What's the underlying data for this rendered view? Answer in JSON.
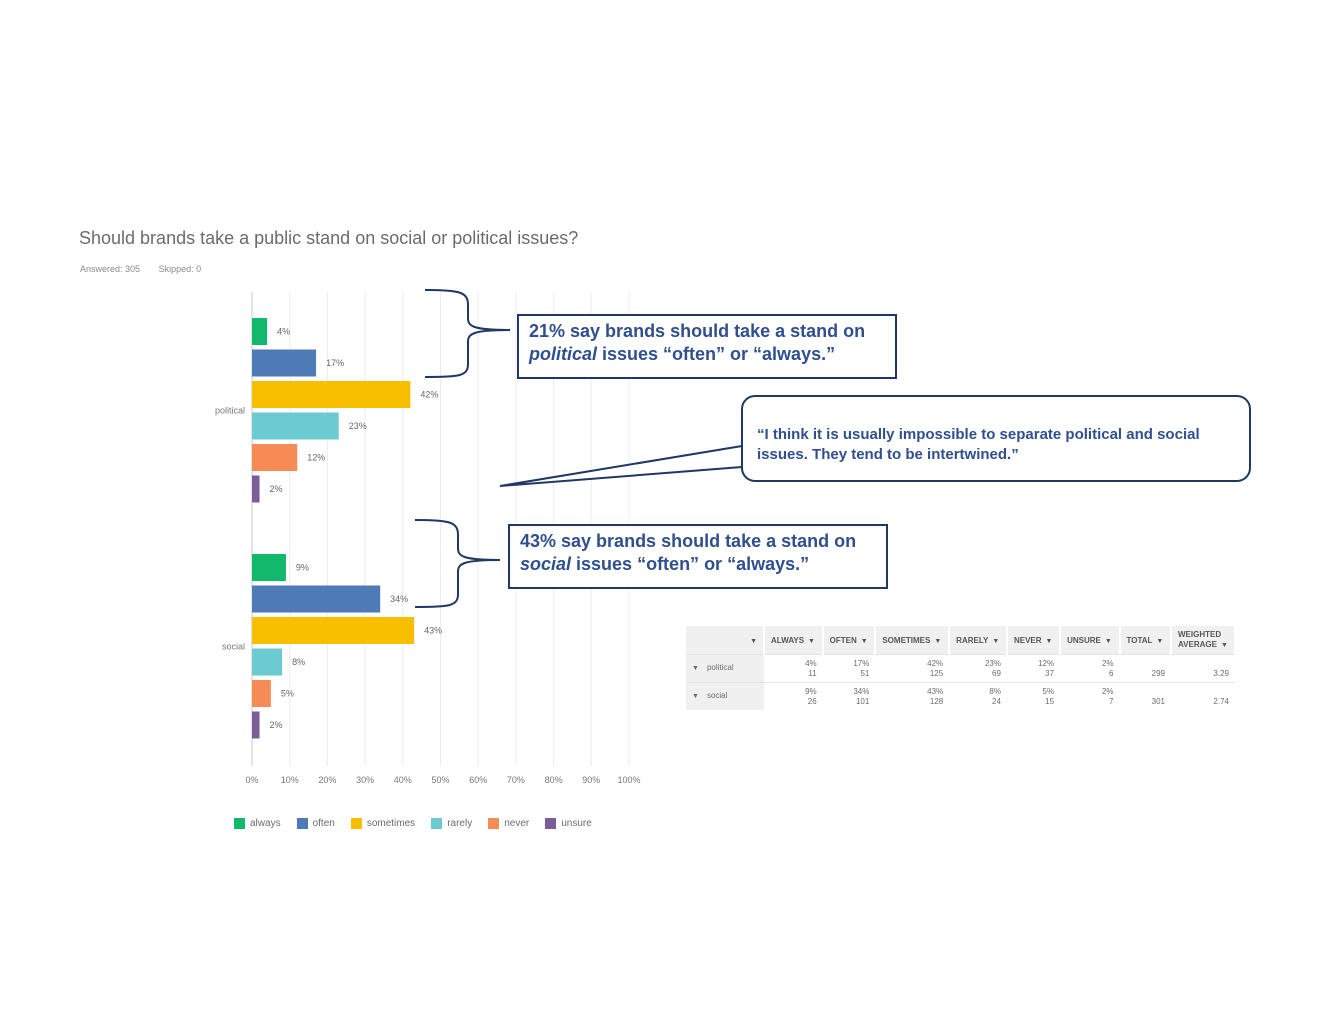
{
  "question": {
    "title": "Should brands take a public stand on social or political issues?",
    "answered": "Answered: 305",
    "skipped": "Skipped: 0"
  },
  "colors": {
    "always": "#12b86c",
    "often": "#4e7ab5",
    "sometimes": "#f8bf00",
    "rarely": "#6ccbd0",
    "never": "#f68b55",
    "unsure": "#7a5d99",
    "callout_border": "#1f3864",
    "callout_text": "#2f4f8f"
  },
  "chart_data": {
    "type": "bar",
    "orientation": "horizontal",
    "categories": [
      "political",
      "social"
    ],
    "series": [
      {
        "name": "always",
        "values": [
          4,
          9
        ],
        "labels": [
          "4%",
          "9%"
        ]
      },
      {
        "name": "often",
        "values": [
          17,
          34
        ],
        "labels": [
          "17%",
          "34%"
        ]
      },
      {
        "name": "sometimes",
        "values": [
          42,
          43
        ],
        "labels": [
          "42%",
          "43%"
        ]
      },
      {
        "name": "rarely",
        "values": [
          23,
          8
        ],
        "labels": [
          "23%",
          "8%"
        ]
      },
      {
        "name": "never",
        "values": [
          12,
          5
        ],
        "labels": [
          "12%",
          "5%"
        ]
      },
      {
        "name": "unsure",
        "values": [
          2,
          2
        ],
        "labels": [
          "2%",
          "2%"
        ]
      }
    ],
    "xticks": [
      "0%",
      "10%",
      "20%",
      "30%",
      "40%",
      "50%",
      "60%",
      "70%",
      "80%",
      "90%",
      "100%"
    ],
    "xlim": [
      0,
      100
    ],
    "grid": true,
    "legend": "bottom"
  },
  "callouts": {
    "political": {
      "pre": "21% say brands should take a stand on ",
      "em": "political",
      "post": " issues “often” or “always.”"
    },
    "social": {
      "pre": "43% say brands should take a stand on ",
      "em": "social",
      "post": " issues “often” or “always.”"
    },
    "quote": "“I think it is usually impossible to separate political and social issues. They tend to be intertwined.”"
  },
  "table": {
    "headers": [
      "ALWAYS",
      "OFTEN",
      "SOMETIMES",
      "RARELY",
      "NEVER",
      "UNSURE",
      "TOTAL",
      "WEIGHTED AVERAGE"
    ],
    "rows": [
      {
        "label": "political",
        "pcts": [
          "4%",
          "17%",
          "42%",
          "23%",
          "12%",
          "2%"
        ],
        "counts": [
          "11",
          "51",
          "125",
          "69",
          "37",
          "6"
        ],
        "total": "299",
        "weighted": "3.29"
      },
      {
        "label": "social",
        "pcts": [
          "9%",
          "34%",
          "43%",
          "8%",
          "5%",
          "2%"
        ],
        "counts": [
          "26",
          "101",
          "128",
          "24",
          "15",
          "7"
        ],
        "total": "301",
        "weighted": "2.74"
      }
    ]
  }
}
